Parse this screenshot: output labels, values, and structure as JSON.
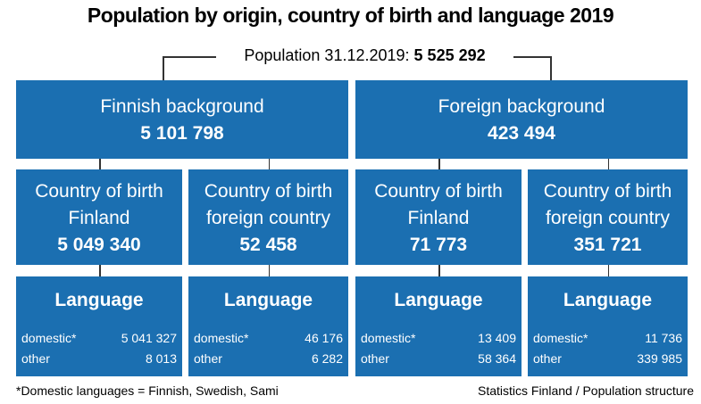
{
  "title": "Population by origin, country of birth and language 2019",
  "total": {
    "label": "Population 31.12.2019:",
    "value": "5 525 292"
  },
  "groups": [
    {
      "label": "Finnish background",
      "value": "5 101 798",
      "children": [
        {
          "lines": [
            "Country of birth",
            "Finland"
          ],
          "value": "5 049 340",
          "language": {
            "title": "Language",
            "rows": [
              [
                "domestic*",
                "5 041 327"
              ],
              [
                "other",
                "8 013"
              ]
            ]
          }
        },
        {
          "lines": [
            "Country of birth",
            "foreign country"
          ],
          "value": "52 458",
          "language": {
            "title": "Language",
            "rows": [
              [
                "domestic*",
                "46 176"
              ],
              [
                "other",
                "6 282"
              ]
            ]
          }
        }
      ]
    },
    {
      "label": "Foreign background",
      "value": "423 494",
      "children": [
        {
          "lines": [
            "Country of birth",
            "Finland"
          ],
          "value": "71 773",
          "language": {
            "title": "Language",
            "rows": [
              [
                "domestic*",
                "13 409"
              ],
              [
                "other",
                "58 364"
              ]
            ]
          }
        },
        {
          "lines": [
            "Country of birth",
            "foreign country"
          ],
          "value": "351 721",
          "language": {
            "title": "Language",
            "rows": [
              [
                "domestic*",
                "11 736"
              ],
              [
                "other",
                "339 985"
              ]
            ]
          }
        }
      ]
    }
  ],
  "footnote": "*Domestic languages = Finnish, Swedish, Sami",
  "source": "Statistics Finland / Population structure"
}
